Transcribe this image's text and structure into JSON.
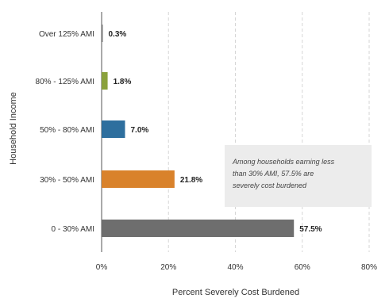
{
  "chart_data": {
    "type": "bar",
    "orientation": "horizontal",
    "categories": [
      "Over 125% AMI",
      "80% - 125% AMI",
      "50% - 80% AMI",
      "30% - 50% AMI",
      "0 - 30% AMI"
    ],
    "values": [
      0.3,
      1.8,
      7.0,
      21.8,
      57.5
    ],
    "value_labels": [
      "0.3%",
      "1.8%",
      "7.0%",
      "21.8%",
      "57.5%"
    ],
    "colors": [
      "#7a7a7a",
      "#8aa13c",
      "#2e6f9e",
      "#d9822b",
      "#6e6e6e"
    ],
    "xlabel": "Percent Severely Cost Burdened",
    "ylabel": "Household Income",
    "xlim": [
      0,
      80
    ],
    "xticks": [
      0,
      20,
      40,
      60,
      80
    ],
    "xtick_labels": [
      "0%",
      "20%",
      "40%",
      "60%",
      "80%"
    ],
    "grid": "vertical dashed",
    "annotation": [
      "Among households earning less",
      "than 30% AMI, 57.5% are",
      "severely cost burdened"
    ]
  }
}
